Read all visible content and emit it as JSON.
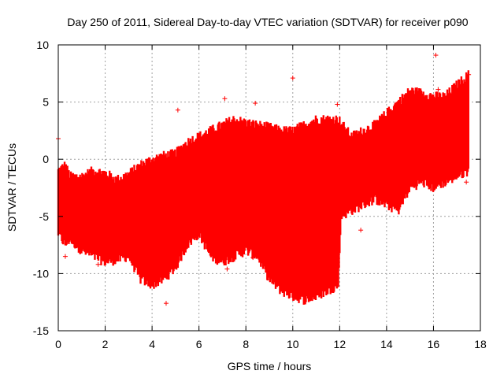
{
  "chart_data": {
    "type": "scatter",
    "title": "Day 250 of 2011, Sidereal Day-to-day VTEC variation (SDTVAR) for receiver p090",
    "xlabel": "GPS time / hours",
    "ylabel": "SDTVAR / TECUs",
    "xlim": [
      0,
      18
    ],
    "ylim": [
      -15,
      10
    ],
    "xticks": [
      0,
      2,
      4,
      6,
      8,
      10,
      12,
      14,
      16,
      18
    ],
    "yticks": [
      -15,
      -10,
      -5,
      0,
      5,
      10
    ],
    "grid": true,
    "marker": "+",
    "color": "#ff0000",
    "series": [
      {
        "name": "SDTVAR",
        "envelope_x": [
          0,
          0.3,
          0.5,
          1,
          1.5,
          2,
          2.5,
          3,
          3.5,
          4,
          4.5,
          5,
          5.5,
          6,
          6.5,
          7,
          7.5,
          8,
          8.5,
          9,
          9.5,
          10,
          10.5,
          11,
          11.5,
          11.95,
          12.05,
          12.5,
          13,
          13.5,
          14,
          14.5,
          15,
          15.5,
          16,
          16.5,
          17,
          17.5
        ],
        "envelope_upper": [
          -1,
          -0.5,
          -1.5,
          -1.5,
          -1,
          -1.2,
          -1.8,
          -1.3,
          -0.5,
          0,
          0.3,
          0.5,
          1.5,
          2,
          2.5,
          3,
          3.5,
          3.2,
          3,
          2.8,
          2.5,
          2.5,
          3,
          3.5,
          3.5,
          3.5,
          3.2,
          2,
          2.5,
          3,
          4,
          5,
          6,
          5.8,
          5.5,
          5.5,
          6.5,
          7.4
        ],
        "envelope_lower": [
          -6.5,
          -7.5,
          -7,
          -8,
          -8.5,
          -9,
          -8.8,
          -8.5,
          -10.5,
          -11,
          -10.5,
          -9.5,
          -7.5,
          -6.5,
          -8.5,
          -9,
          -8.5,
          -8,
          -8.5,
          -10.5,
          -11.5,
          -12,
          -12.3,
          -12,
          -11.5,
          -11,
          -5,
          -4.5,
          -4,
          -3.5,
          -4,
          -4.5,
          -2.5,
          -2,
          -2.5,
          -2,
          -1.5,
          -1
        ],
        "outliers": [
          [
            0,
            1.8
          ],
          [
            0.3,
            -8.5
          ],
          [
            1.7,
            -9.2
          ],
          [
            4.6,
            -12.6
          ],
          [
            5.1,
            4.3
          ],
          [
            7.1,
            5.3
          ],
          [
            7.2,
            -9.6
          ],
          [
            8.3,
            -8.6
          ],
          [
            8.4,
            4.9
          ],
          [
            10,
            7.1
          ],
          [
            11.9,
            4.8
          ],
          [
            12.9,
            -6.2
          ],
          [
            16.1,
            9.1
          ],
          [
            16.2,
            6.1
          ],
          [
            17.4,
            -2
          ],
          [
            17.5,
            7.4
          ]
        ]
      }
    ]
  }
}
